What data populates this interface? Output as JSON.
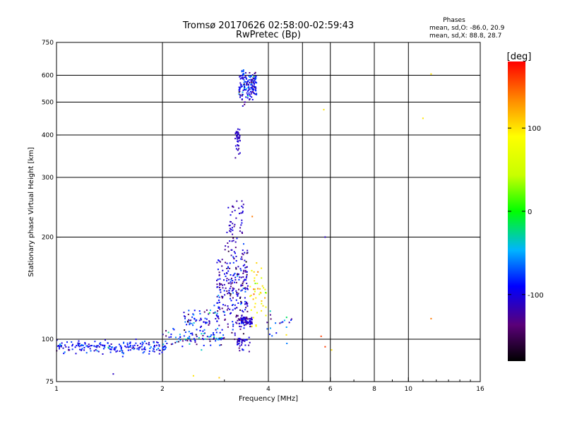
{
  "chart_data": {
    "type": "scatter",
    "title": "Tromsø 20170626 02:58:00-02:59:43",
    "subtitle": "RwPretec (Bp)",
    "xlabel": "Frequency [MHz]",
    "ylabel": "Stationary phase Virtual Height [km]",
    "x_scale": "log",
    "y_scale": "log",
    "xlim": [
      1,
      16
    ],
    "ylim": [
      75,
      750
    ],
    "x_ticks": [
      1,
      2,
      4,
      6,
      8,
      10,
      16
    ],
    "x_tick_labels": [
      "1",
      "2",
      "4",
      "6",
      "8",
      "10",
      "16"
    ],
    "y_ticks": [
      75,
      100,
      200,
      300,
      400,
      500,
      600,
      750
    ],
    "y_tick_labels": [
      "75",
      "100",
      "200",
      "300",
      "400",
      "500",
      "600",
      "750"
    ],
    "x_gridlines": [
      2,
      4,
      5,
      6,
      8,
      10
    ],
    "y_gridlines": [
      100,
      200,
      300,
      400,
      500,
      600
    ],
    "grid": true,
    "stats": {
      "heading": "Phases",
      "line_o": "mean, sd,O: -86.0, 20.9",
      "line_x": "mean, sd,X:  88.8, 28.7"
    },
    "colorbar": {
      "label": "[deg]",
      "range": [
        -180,
        180
      ],
      "tick_values": [
        100,
        0,
        -100
      ],
      "tick_labels": [
        "100",
        "0",
        "-100"
      ],
      "colormap": "rainbow"
    },
    "series": [
      {
        "clusters": [
          {
            "x_range": [
              1.0,
              2.05
            ],
            "y_center": 95,
            "y_spread": 3.5,
            "count": 200,
            "phase_mean": -90,
            "phase_sd": 18
          },
          {
            "x_range": [
              2.0,
              3.0
            ],
            "y_center": 101,
            "y_spread": 4,
            "count": 90,
            "phase_mean": -80,
            "phase_sd": 35
          },
          {
            "x_range": [
              2.3,
              2.9
            ],
            "y_center": 114,
            "y_spread": 8,
            "count": 70,
            "phase_mean": -95,
            "phase_sd": 30
          },
          {
            "x_range": [
              2.85,
              3.5
            ],
            "y_center": 140,
            "y_spread": 35,
            "count": 260,
            "phase_mean": -110,
            "phase_sd": 25
          },
          {
            "x_range": [
              3.05,
              3.4
            ],
            "y_center": 215,
            "y_spread": 35,
            "count": 50,
            "phase_mean": -110,
            "phase_sd": 10
          },
          {
            "x_range": [
              3.3,
              3.6
            ],
            "y_center": 113,
            "y_spread": 3,
            "count": 70,
            "phase_mean": -110,
            "phase_sd": 15
          },
          {
            "x_range": [
              3.25,
              3.55
            ],
            "y_center": 98,
            "y_spread": 4,
            "count": 35,
            "phase_mean": -110,
            "phase_sd": 15
          },
          {
            "x_range": [
              3.55,
              3.95
            ],
            "y_center": 135,
            "y_spread": 25,
            "count": 45,
            "phase_mean": 90,
            "phase_sd": 30
          },
          {
            "x_range": [
              3.22,
              3.33
            ],
            "y_center": 385,
            "y_spread": 25,
            "count": 40,
            "phase_mean": -110,
            "phase_sd": 8
          },
          {
            "x_range": [
              3.3,
              3.7
            ],
            "y_center": 560,
            "y_spread": 50,
            "count": 160,
            "phase_mean": -95,
            "phase_sd": 22
          },
          {
            "x_range": [
              3.95,
              4.7
            ],
            "y_center": 110,
            "y_spread": 8,
            "count": 20,
            "phase_mean": -80,
            "phase_sd": 40
          }
        ],
        "points": [
          {
            "x": 5.75,
            "y": 475,
            "phase": 100
          },
          {
            "x": 11.0,
            "y": 448,
            "phase": 100
          },
          {
            "x": 11.6,
            "y": 605,
            "phase": 100
          },
          {
            "x": 11.6,
            "y": 115,
            "phase": 140
          },
          {
            "x": 5.8,
            "y": 200,
            "phase": -110
          },
          {
            "x": 5.65,
            "y": 102,
            "phase": 160
          },
          {
            "x": 5.8,
            "y": 95,
            "phase": 160
          },
          {
            "x": 6.05,
            "y": 93,
            "phase": 100
          },
          {
            "x": 4.5,
            "y": 103,
            "phase": 100
          },
          {
            "x": 3.6,
            "y": 230,
            "phase": 140
          },
          {
            "x": 1.45,
            "y": 79,
            "phase": -110
          },
          {
            "x": 2.9,
            "y": 77,
            "phase": 110
          },
          {
            "x": 2.45,
            "y": 78,
            "phase": 100
          }
        ]
      }
    ]
  }
}
